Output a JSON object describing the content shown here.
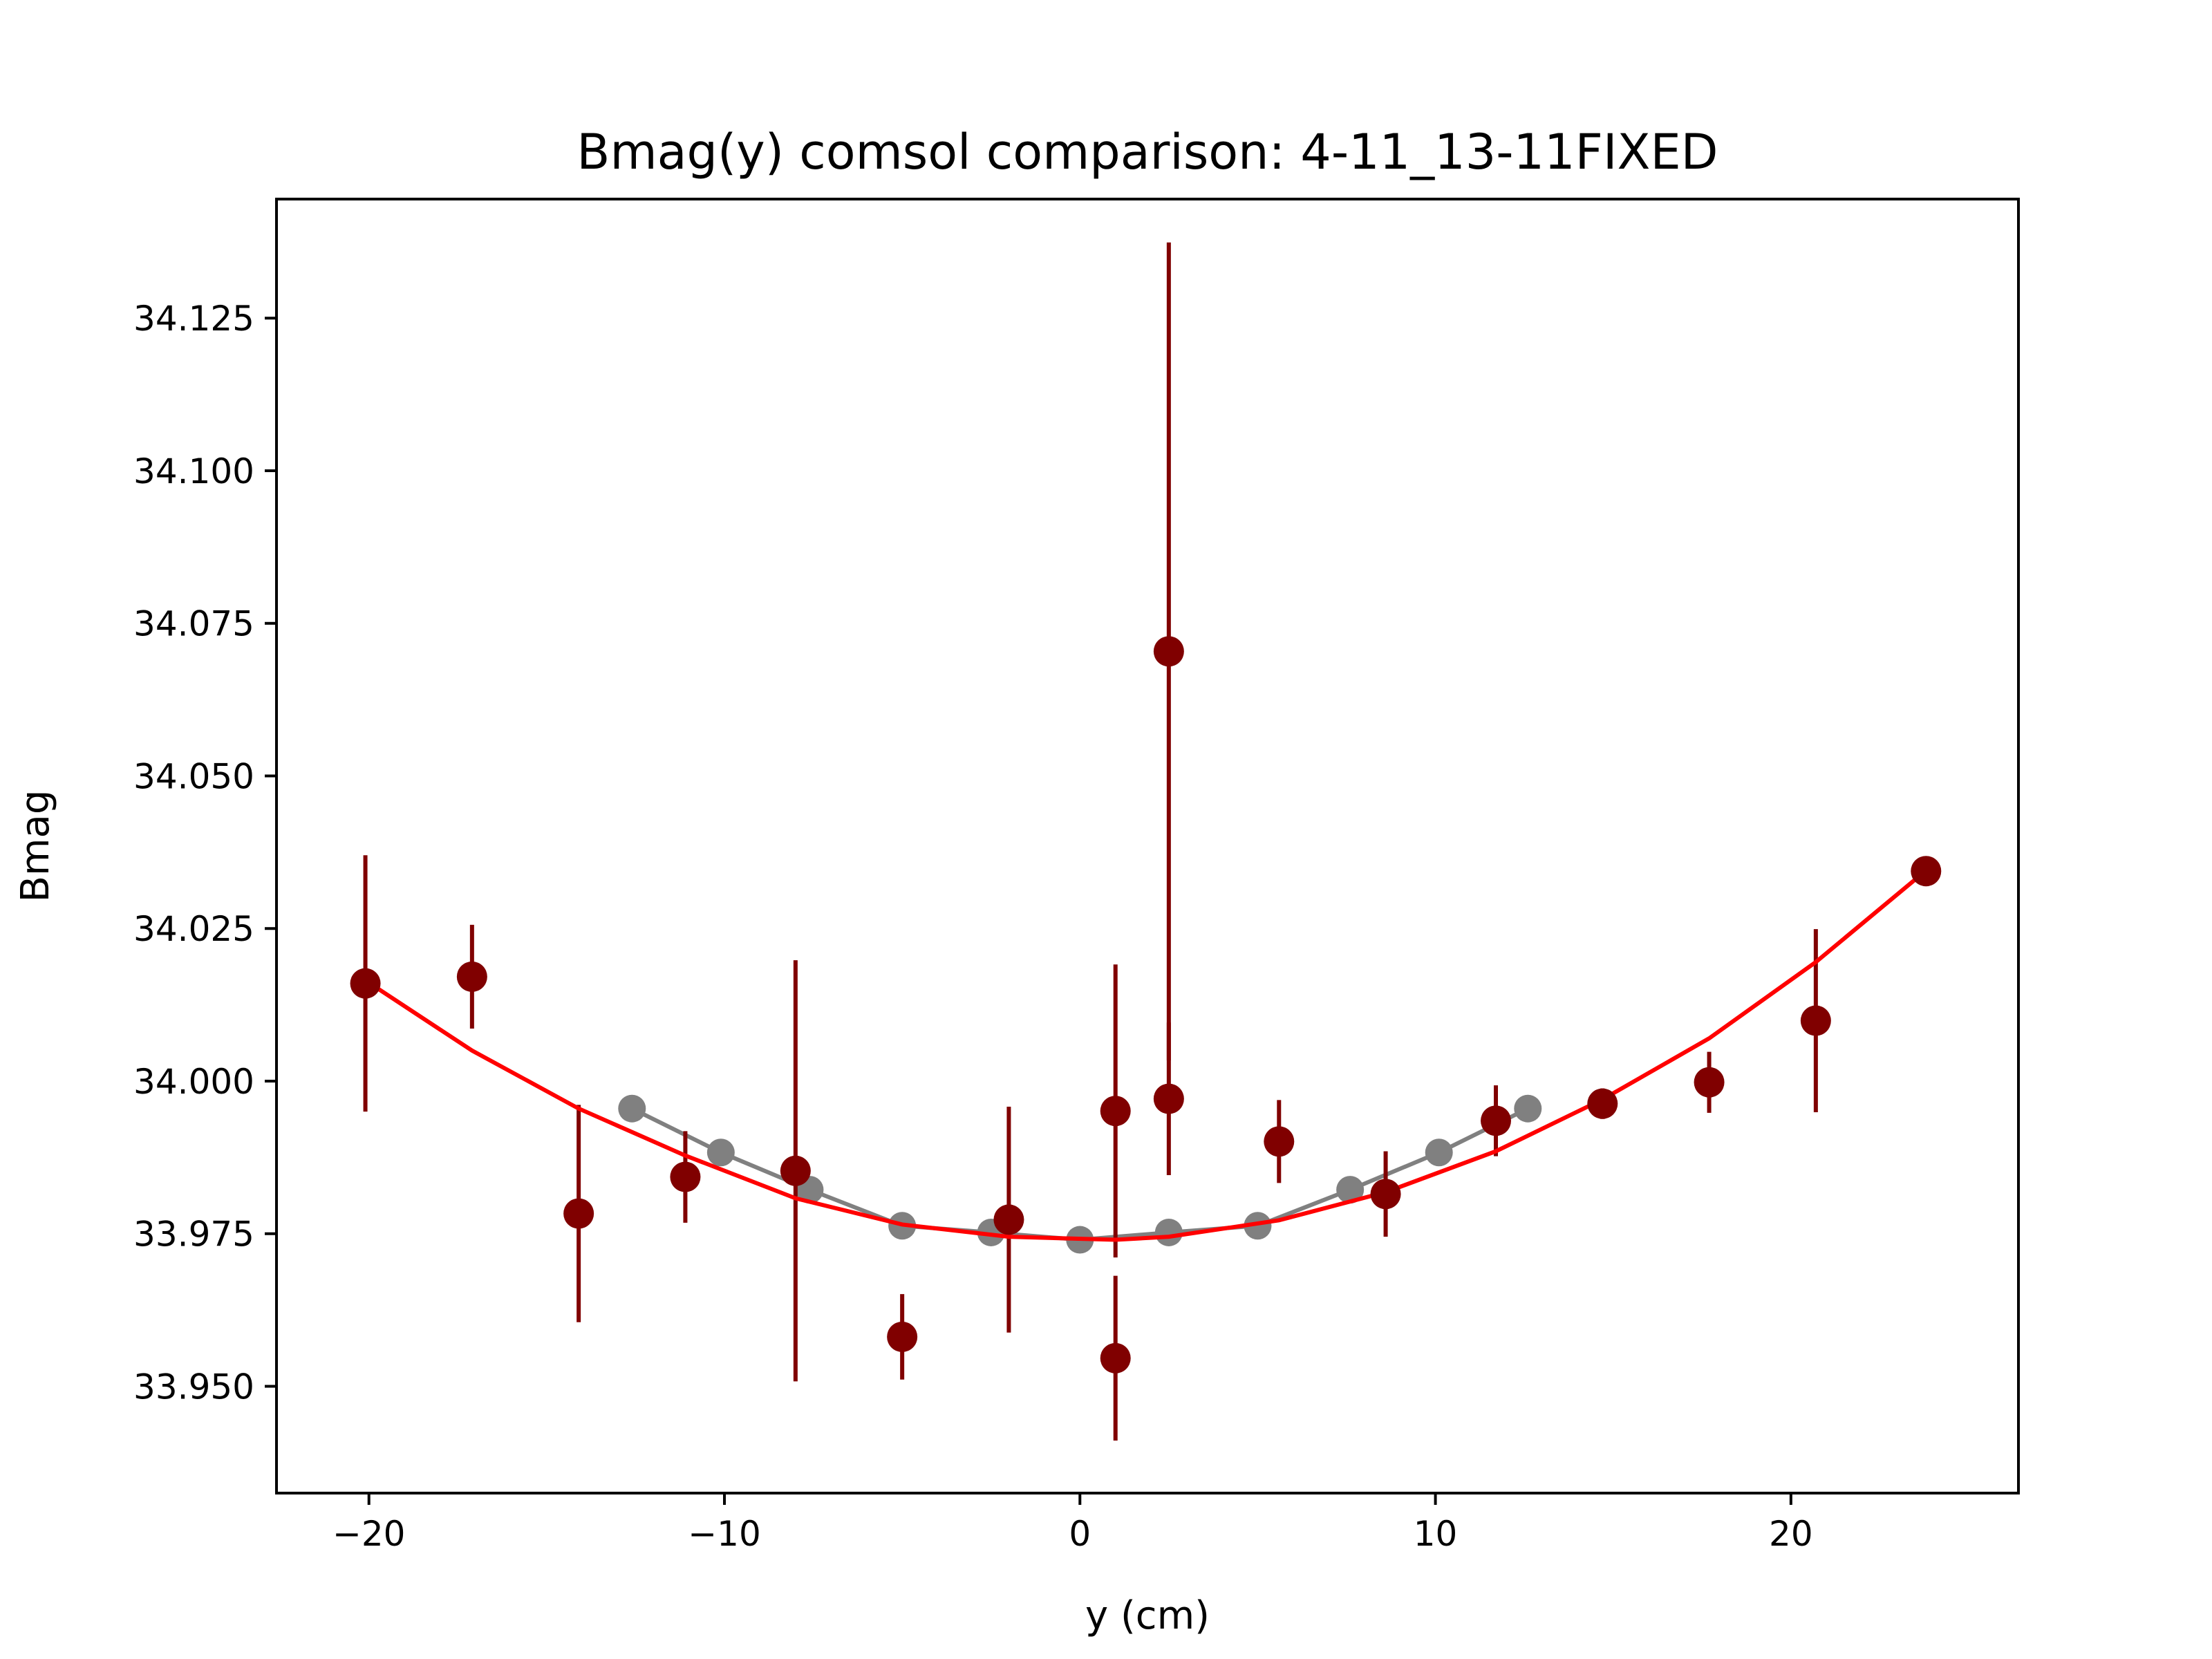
{
  "chart_data": {
    "type": "scatter",
    "title": "Bmag(y) comsol comparison: 4-11_13-11FIXED",
    "xlabel": "y (cm)",
    "ylabel": "Bmag",
    "xlim": [
      -22.6,
      26.4
    ],
    "ylim": [
      33.9325,
      34.1445
    ],
    "xticks": [
      -20,
      -10,
      0,
      10,
      20
    ],
    "xtick_labels": [
      "−20",
      "−10",
      "0",
      "10",
      "20"
    ],
    "yticks": [
      33.95,
      33.975,
      34.0,
      34.025,
      34.05,
      34.075,
      34.1,
      34.125
    ],
    "ytick_labels": [
      "33.950",
      "33.975",
      "34.000",
      "34.025",
      "34.050",
      "34.075",
      "34.100",
      "34.125"
    ],
    "grid": false,
    "series": [
      {
        "kind": "line-markers",
        "color": "#808080",
        "x": [
          -12.6,
          -10.1,
          -7.6,
          -5.0,
          -2.5,
          0.0,
          2.5,
          5.0,
          7.6,
          10.1,
          12.6
        ],
        "y": [
          33.9955,
          33.9883,
          33.9822,
          33.9763,
          33.9752,
          33.974,
          33.9752,
          33.9763,
          33.9822,
          33.9883,
          33.9955
        ]
      },
      {
        "kind": "errorbar",
        "color": "#800000",
        "x": [
          -20.1,
          -17.1,
          -14.1,
          -11.1,
          -8.0,
          -5.0,
          -2.0,
          1.0,
          1.0,
          2.5,
          2.5,
          5.6,
          8.6,
          11.7,
          14.7,
          17.7,
          20.7,
          23.8
        ],
        "y": [
          34.016,
          34.0171,
          33.9783,
          33.9843,
          33.9853,
          33.9581,
          33.9773,
          33.9951,
          33.9546,
          33.9971,
          34.0704,
          33.9901,
          33.9815,
          33.9935,
          33.9963,
          33.9998,
          34.0099,
          34.0344
        ],
        "yerr": [
          0.021,
          0.0085,
          0.0178,
          0.0075,
          0.0345,
          0.007,
          0.0185,
          0.024,
          0.0135,
          0.0125,
          0.067,
          0.0068,
          0.007,
          0.0058,
          0.0025,
          0.005,
          0.015,
          0.001
        ]
      },
      {
        "kind": "line",
        "color": "#ff0000",
        "x": [
          -20.1,
          -17.1,
          -14.1,
          -11.1,
          -8.0,
          -5.0,
          -2.0,
          1.0,
          2.5,
          5.6,
          8.6,
          11.7,
          14.7,
          17.7,
          20.7,
          23.8
        ],
        "y": [
          34.0165,
          34.005,
          33.9955,
          33.9878,
          33.9808,
          33.9765,
          33.9745,
          33.974,
          33.9745,
          33.9772,
          33.9818,
          33.9885,
          33.997,
          34.007,
          34.0195,
          34.0345
        ]
      }
    ]
  }
}
